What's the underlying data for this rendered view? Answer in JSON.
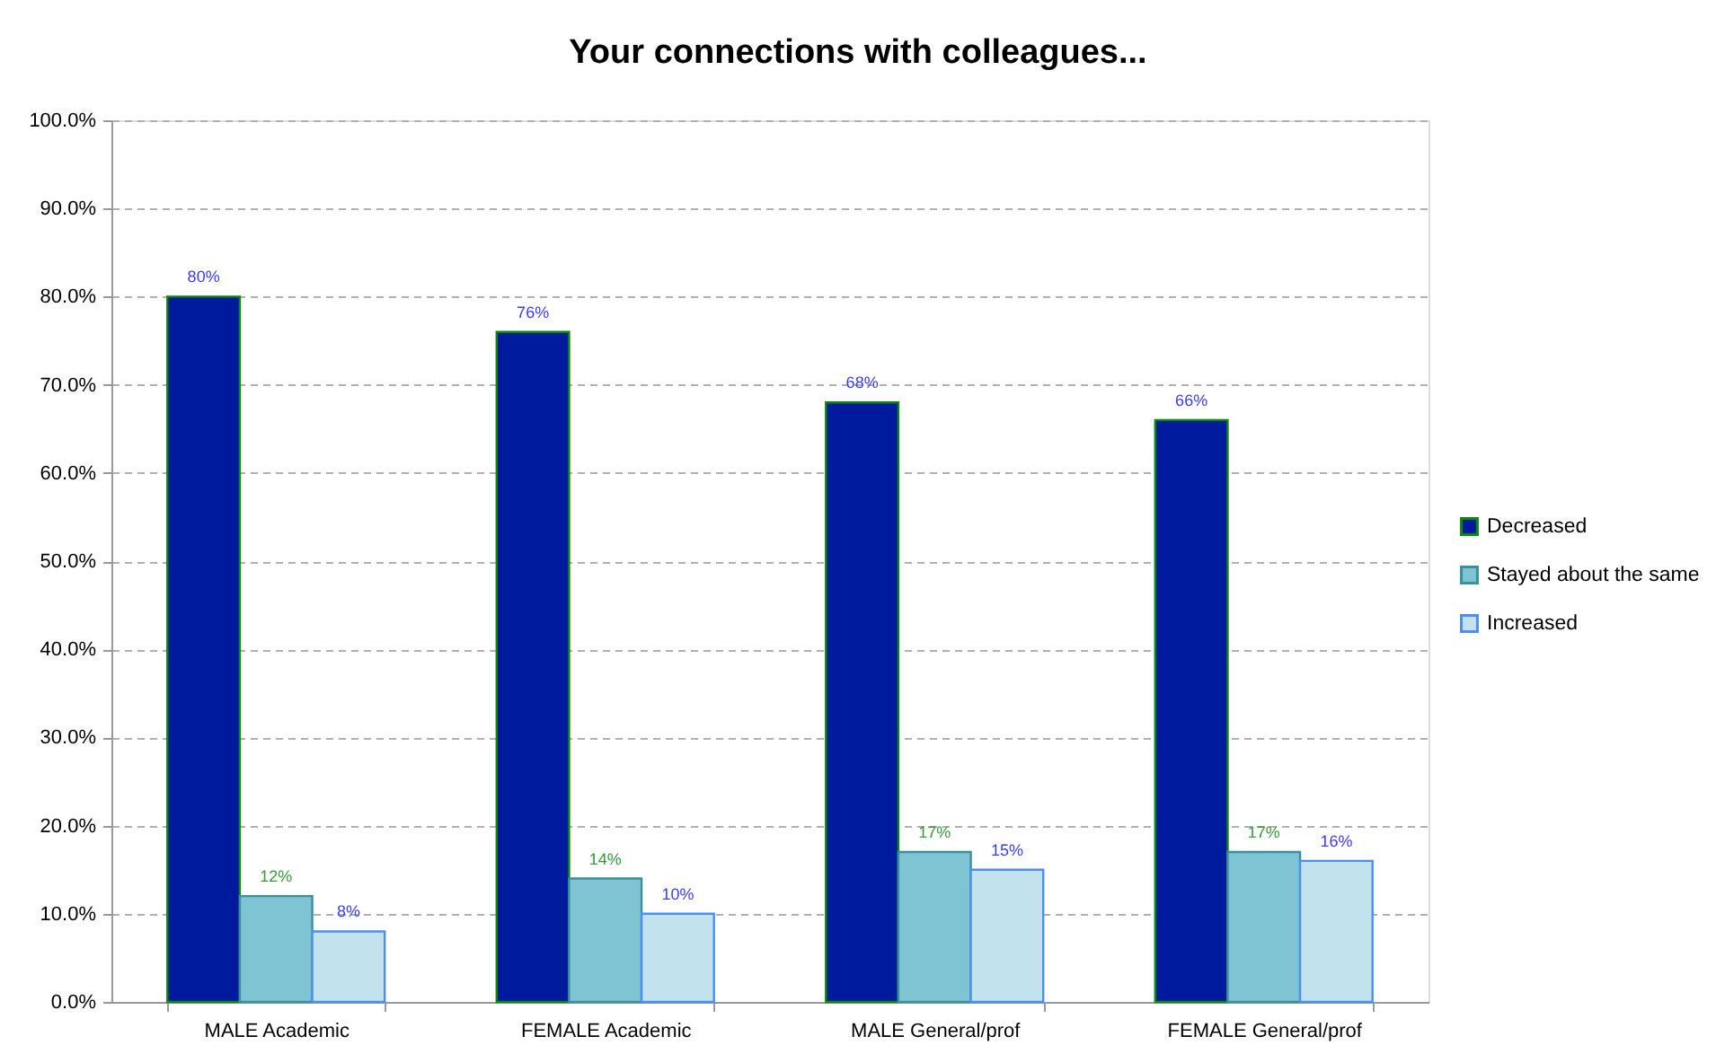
{
  "chart_data": {
    "type": "bar",
    "title": "Your connections with colleagues...",
    "categories": [
      "MALE Academic",
      "FEMALE Academic",
      "MALE General/prof",
      "FEMALE General/prof"
    ],
    "series": [
      {
        "name": "Decreased",
        "color": "#001a9e",
        "values": [
          80,
          76,
          68,
          66
        ],
        "value_labels": [
          "80%",
          "76%",
          "68%",
          "66%"
        ]
      },
      {
        "name": "Stayed about the same",
        "color": "#7fc4d3",
        "values": [
          12,
          14,
          17,
          17
        ],
        "value_labels": [
          "12%",
          "14%",
          "17%",
          "17%"
        ]
      },
      {
        "name": "Increased",
        "color": "#c2e3ee",
        "values": [
          8,
          10,
          15,
          16
        ],
        "value_labels": [
          "8%",
          "10%",
          "15%",
          "16%"
        ]
      }
    ],
    "ylim": [
      0,
      100
    ],
    "yticks": [
      {
        "value": 0,
        "label": "0.0%"
      },
      {
        "value": 10,
        "label": "10.0%"
      },
      {
        "value": 20,
        "label": "20.0%"
      },
      {
        "value": 30,
        "label": "30.0%"
      },
      {
        "value": 40,
        "label": "40.0%"
      },
      {
        "value": 50,
        "label": "50.0%"
      },
      {
        "value": 60,
        "label": "60.0%"
      },
      {
        "value": 70,
        "label": "70.0%"
      },
      {
        "value": 80,
        "label": "80.0%"
      },
      {
        "value": 90,
        "label": "90.0%"
      },
      {
        "value": 100,
        "label": "100.0%"
      }
    ],
    "grid": "y",
    "legend": "right"
  }
}
